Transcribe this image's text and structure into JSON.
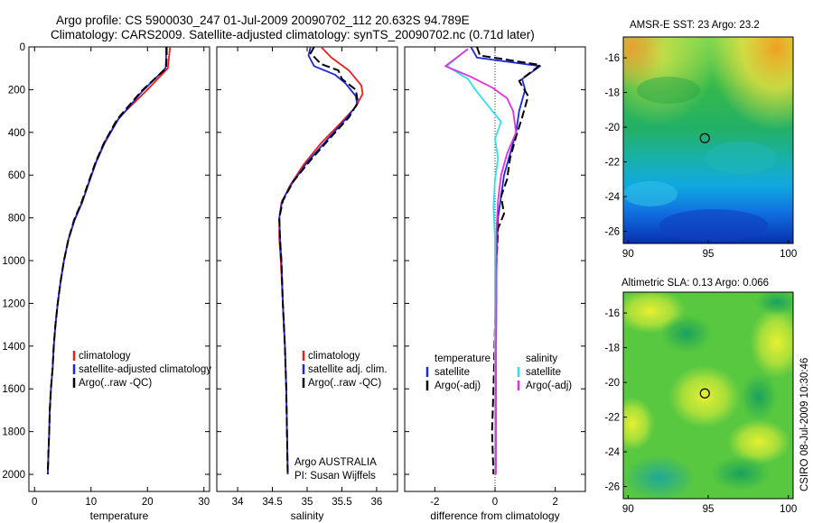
{
  "title": {
    "line1": "Argo profile: CS 5900030_247 01-Jul-2009 20090702_112 20.632S 94.789E",
    "line2": "Climatology: CARS2009. Satellite-adjusted climatology: synTS_20090702.nc (0.71d later)"
  },
  "credit": "CSIRO 08-Jul-2009 10:30:46",
  "colors": {
    "red": "#e8201c",
    "blue": "#1e28d8",
    "black": "#000000",
    "cyan": "#30e0e8",
    "magenta": "#e030e0"
  },
  "chart_data": [
    {
      "type": "line",
      "id": "temperature",
      "xlabel": "temperature",
      "xlim": [
        -1,
        31
      ],
      "ylim": [
        0,
        2080
      ],
      "xticks": [
        "0",
        "10",
        "20",
        "30"
      ],
      "yticks": [
        "0",
        "200",
        "400",
        "600",
        "800",
        "1000",
        "1200",
        "1400",
        "1600",
        "1800",
        "2000"
      ],
      "legend": [
        "climatology",
        "satellite-adjusted climatology",
        "Argo(..raw -QC)"
      ],
      "series": [
        {
          "name": "climatology",
          "color": "red",
          "dash": false,
          "points": [
            [
              24,
              0
            ],
            [
              23.8,
              50
            ],
            [
              23.6,
              100
            ],
            [
              20,
              200
            ],
            [
              15,
              330
            ],
            [
              12.5,
              440
            ],
            [
              11,
              530
            ],
            [
              9.8,
              620
            ],
            [
              8.5,
              720
            ],
            [
              7.2,
              800
            ],
            [
              6,
              900
            ],
            [
              5.2,
              1000
            ],
            [
              4.6,
              1100
            ],
            [
              4.1,
              1200
            ],
            [
              3.7,
              1300
            ],
            [
              3.4,
              1400
            ],
            [
              3.2,
              1500
            ],
            [
              2.9,
              1600
            ],
            [
              2.7,
              1700
            ],
            [
              2.6,
              1800
            ],
            [
              2.45,
              1900
            ],
            [
              2.35,
              2000
            ]
          ]
        },
        {
          "name": "satellite adj.",
          "color": "blue",
          "dash": false,
          "points": [
            [
              23.3,
              0
            ],
            [
              23.3,
              60
            ],
            [
              23.2,
              100
            ],
            [
              19,
              210
            ],
            [
              14.8,
              340
            ],
            [
              12.4,
              450
            ],
            [
              10.9,
              540
            ],
            [
              9.7,
              630
            ],
            [
              8.4,
              730
            ],
            [
              7.1,
              810
            ],
            [
              6,
              900
            ],
            [
              5.2,
              1000
            ],
            [
              4.6,
              1100
            ],
            [
              4.1,
              1200
            ],
            [
              3.7,
              1300
            ],
            [
              3.4,
              1400
            ],
            [
              3.2,
              1500
            ],
            [
              2.9,
              1600
            ],
            [
              2.7,
              1700
            ],
            [
              2.6,
              1800
            ],
            [
              2.45,
              1900
            ],
            [
              2.35,
              2000
            ]
          ]
        },
        {
          "name": "Argo",
          "color": "black",
          "dash": true,
          "points": [
            [
              23.4,
              0
            ],
            [
              23.4,
              40
            ],
            [
              23.3,
              100
            ],
            [
              19,
              205
            ],
            [
              14.6,
              340
            ],
            [
              12.3,
              450
            ],
            [
              10.8,
              540
            ],
            [
              9.6,
              630
            ],
            [
              8.3,
              730
            ],
            [
              7,
              810
            ],
            [
              6,
              900
            ],
            [
              5.2,
              1000
            ],
            [
              4.6,
              1100
            ],
            [
              4.1,
              1200
            ],
            [
              3.7,
              1300
            ],
            [
              3.4,
              1400
            ],
            [
              3.2,
              1500
            ],
            [
              2.9,
              1600
            ],
            [
              2.7,
              1700
            ],
            [
              2.6,
              1800
            ],
            [
              2.45,
              1900
            ],
            [
              2.35,
              2000
            ]
          ]
        }
      ]
    },
    {
      "type": "line",
      "id": "salinity",
      "xlabel": "salinity",
      "xlim": [
        33.7,
        36.3
      ],
      "ylim": [
        0,
        2080
      ],
      "xticks": [
        "34",
        "34.5",
        "35",
        "35.5",
        "36"
      ],
      "legend": [
        "climatology",
        "satellite adj. clim.",
        "Argo(..raw -QC)"
      ],
      "annotation": [
        "Argo AUSTRALIA",
        "PI: Susan Wijffels"
      ],
      "series": [
        {
          "name": "climatology",
          "color": "red",
          "dash": false,
          "points": [
            [
              35.2,
              0
            ],
            [
              35.35,
              50
            ],
            [
              35.6,
              110
            ],
            [
              35.78,
              180
            ],
            [
              35.8,
              220
            ],
            [
              35.7,
              280
            ],
            [
              35.5,
              350
            ],
            [
              35.2,
              450
            ],
            [
              34.95,
              550
            ],
            [
              34.75,
              650
            ],
            [
              34.63,
              730
            ],
            [
              34.6,
              800
            ],
            [
              34.6,
              900
            ],
            [
              34.62,
              1000
            ],
            [
              34.65,
              1200
            ],
            [
              34.68,
              1400
            ],
            [
              34.7,
              1600
            ],
            [
              34.71,
              1800
            ],
            [
              34.72,
              2000
            ]
          ]
        },
        {
          "name": "satellite adj.",
          "color": "blue",
          "dash": false,
          "points": [
            [
              35.05,
              0
            ],
            [
              35.02,
              40
            ],
            [
              35.1,
              90
            ],
            [
              35.4,
              130
            ],
            [
              35.55,
              170
            ],
            [
              35.7,
              230
            ],
            [
              35.72,
              270
            ],
            [
              35.55,
              340
            ],
            [
              35.3,
              430
            ],
            [
              35,
              540
            ],
            [
              34.78,
              640
            ],
            [
              34.64,
              720
            ],
            [
              34.6,
              800
            ],
            [
              34.61,
              900
            ],
            [
              34.63,
              1000
            ],
            [
              34.65,
              1200
            ],
            [
              34.68,
              1400
            ],
            [
              34.7,
              1600
            ],
            [
              34.71,
              1800
            ],
            [
              34.72,
              2000
            ]
          ]
        },
        {
          "name": "Argo",
          "color": "black",
          "dash": true,
          "points": [
            [
              35.1,
              0
            ],
            [
              35.05,
              30
            ],
            [
              35.2,
              80
            ],
            [
              35.45,
              110
            ],
            [
              35.5,
              150
            ],
            [
              35.7,
              200
            ],
            [
              35.73,
              260
            ],
            [
              35.6,
              330
            ],
            [
              35.35,
              420
            ],
            [
              35.05,
              530
            ],
            [
              34.8,
              630
            ],
            [
              34.65,
              720
            ],
            [
              34.6,
              800
            ],
            [
              34.61,
              900
            ],
            [
              34.63,
              1000
            ],
            [
              34.65,
              1200
            ],
            [
              34.68,
              1400
            ],
            [
              34.7,
              1600
            ],
            [
              34.71,
              1800
            ],
            [
              34.72,
              2000
            ]
          ]
        }
      ]
    },
    {
      "type": "line",
      "id": "difference",
      "xlabel": "difference from climatology",
      "xlim": [
        -3,
        3
      ],
      "ylim": [
        0,
        2080
      ],
      "xticks": [
        "-2",
        "0",
        "2"
      ],
      "legend_temperature": {
        "header": "temperature",
        "items": [
          "satellite",
          "Argo(-adj)"
        ]
      },
      "legend_salinity": {
        "header": "salinity",
        "items": [
          "satellite",
          "Argo(-adj)"
        ]
      },
      "series": [
        {
          "name": "temperature satellite",
          "color": "blue",
          "dash": false,
          "points": [
            [
              -0.8,
              0
            ],
            [
              -0.6,
              50
            ],
            [
              1.5,
              90
            ],
            [
              0.9,
              150
            ],
            [
              1.0,
              200
            ],
            [
              0.8,
              300
            ],
            [
              0.7,
              400
            ],
            [
              0.5,
              500
            ],
            [
              0.3,
              600
            ],
            [
              0.2,
              700
            ],
            [
              0.1,
              800
            ],
            [
              0.05,
              1000
            ],
            [
              0.03,
              1500
            ],
            [
              0.02,
              2000
            ]
          ]
        },
        {
          "name": "temperature Argo",
          "color": "black",
          "dash": true,
          "points": [
            [
              -0.6,
              0
            ],
            [
              -0.5,
              40
            ],
            [
              1.5,
              85
            ],
            [
              0.8,
              160
            ],
            [
              1.1,
              230
            ],
            [
              0.9,
              330
            ],
            [
              0.7,
              420
            ],
            [
              0.5,
              520
            ],
            [
              0.4,
              620
            ],
            [
              0.2,
              700
            ],
            [
              0.3,
              780
            ],
            [
              0.1,
              850
            ],
            [
              0.05,
              1000
            ],
            [
              0.0,
              1300
            ],
            [
              -0.05,
              1600
            ],
            [
              -0.1,
              1800
            ],
            [
              -0.05,
              2000
            ]
          ]
        },
        {
          "name": "salinity satellite",
          "color": "cyan",
          "dash": false,
          "points": [
            [
              -1.0,
              20
            ],
            [
              -1.6,
              90
            ],
            [
              -0.9,
              150
            ],
            [
              -0.6,
              210
            ],
            [
              -0.2,
              280
            ],
            [
              0.2,
              350
            ],
            [
              0.0,
              430
            ],
            [
              0.1,
              520
            ],
            [
              0.0,
              620
            ],
            [
              -0.05,
              750
            ],
            [
              0.0,
              900
            ],
            [
              0.0,
              1200
            ],
            [
              0.0,
              1600
            ],
            [
              0.0,
              2000
            ]
          ]
        },
        {
          "name": "salinity Argo",
          "color": "magenta",
          "dash": false,
          "points": [
            [
              -0.9,
              10
            ],
            [
              -1.65,
              90
            ],
            [
              -0.8,
              140
            ],
            [
              -0.1,
              190
            ],
            [
              0.4,
              240
            ],
            [
              0.6,
              300
            ],
            [
              0.7,
              400
            ],
            [
              0.4,
              500
            ],
            [
              0.2,
              600
            ],
            [
              0.1,
              720
            ],
            [
              0.05,
              850
            ],
            [
              0.05,
              1000
            ],
            [
              0.03,
              1500
            ],
            [
              0.03,
              2000
            ]
          ]
        }
      ]
    }
  ],
  "maps": [
    {
      "id": "sst",
      "title": "AMSR-E SST: 23 Argo: 23.2",
      "xlim": [
        89.7,
        100.3
      ],
      "ylim": [
        -26.7,
        -14.8
      ],
      "xticks": [
        "90",
        "95",
        "100"
      ],
      "yticks": [
        "-16",
        "-18",
        "-20",
        "-22",
        "-24",
        "-26"
      ],
      "marker": [
        94.789,
        -20.632
      ]
    },
    {
      "id": "sla",
      "title": "Altimetric SLA: 0.13 Argo: 0.066",
      "xlim": [
        89.7,
        100.3
      ],
      "ylim": [
        -26.7,
        -14.8
      ],
      "xticks": [
        "90",
        "95",
        "100"
      ],
      "yticks": [
        "-16",
        "-18",
        "-20",
        "-22",
        "-24",
        "-26"
      ],
      "marker": [
        94.789,
        -20.632
      ]
    }
  ]
}
